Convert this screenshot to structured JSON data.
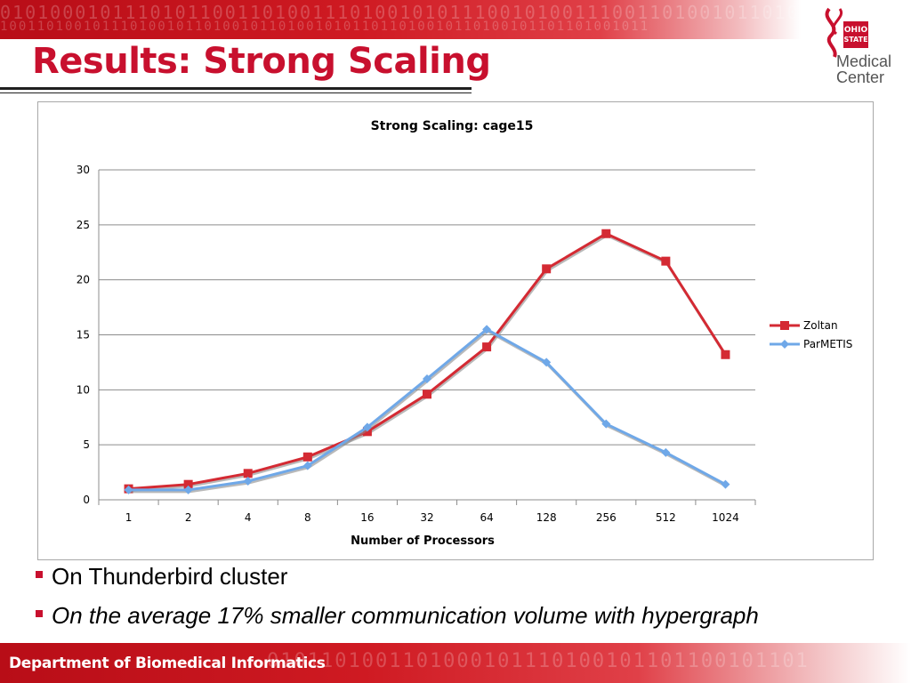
{
  "slide": {
    "title": "Results: Strong Scaling",
    "bullets": [
      "On Thunderbird cluster",
      "On the average 17% smaller communication volume with hypergraph"
    ],
    "footer": "Department of Biomedical Informatics",
    "logo": {
      "line1": "Medical",
      "line2": "Center",
      "icon": "ohio-state-logo-icon"
    },
    "accent_color": "#c8102e"
  },
  "chart_data": {
    "type": "line",
    "title": "Strong Scaling: cage15",
    "xlabel": "Number of Processors",
    "ylabel": "",
    "categories": [
      "1",
      "2",
      "4",
      "8",
      "16",
      "32",
      "64",
      "128",
      "256",
      "512",
      "1024"
    ],
    "ylim": [
      0,
      30
    ],
    "yticks": [
      0,
      5,
      10,
      15,
      20,
      25,
      30
    ],
    "grid": true,
    "legend": "right",
    "series": [
      {
        "name": "Zoltan",
        "color": "#d42a33",
        "marker": "square",
        "values": [
          1.0,
          1.4,
          2.4,
          3.9,
          6.2,
          9.6,
          13.9,
          21.0,
          24.2,
          21.7,
          13.2
        ]
      },
      {
        "name": "ParMETIS",
        "color": "#6fa8e8",
        "marker": "diamond",
        "values": [
          0.9,
          0.9,
          1.7,
          3.1,
          6.6,
          11.0,
          15.5,
          12.5,
          6.9,
          4.3,
          1.4
        ]
      }
    ]
  }
}
